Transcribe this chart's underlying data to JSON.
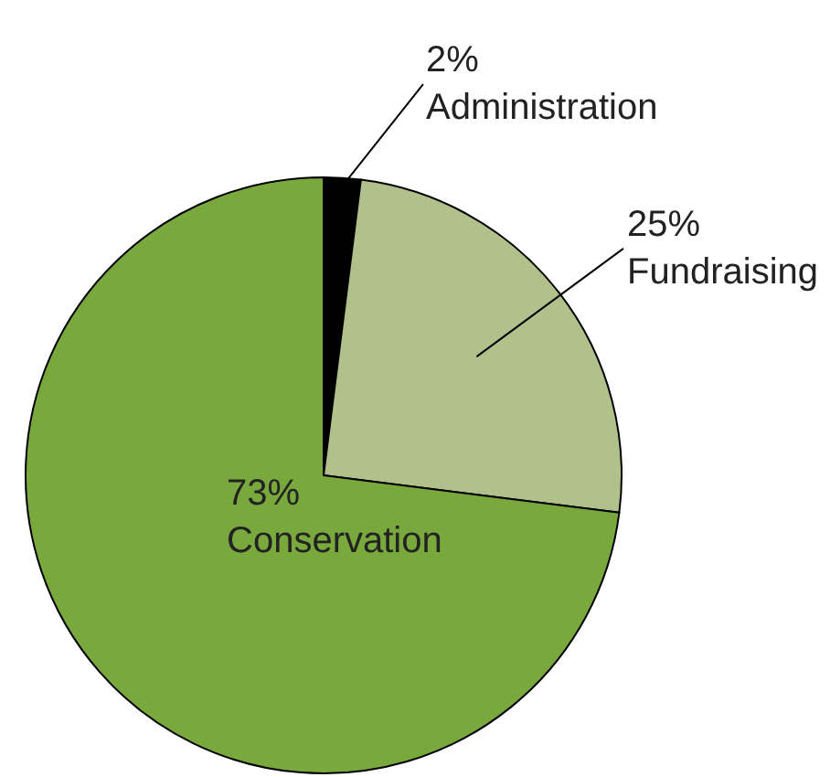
{
  "chart_data": {
    "type": "pie",
    "categories": [
      "Administration",
      "Fundraising",
      "Conservation"
    ],
    "values": [
      2,
      25,
      73
    ],
    "colors": [
      "#000000",
      "#b1c18b",
      "#79a93d"
    ],
    "value_labels": [
      "2%",
      "25%",
      "73%"
    ],
    "legend": false
  }
}
